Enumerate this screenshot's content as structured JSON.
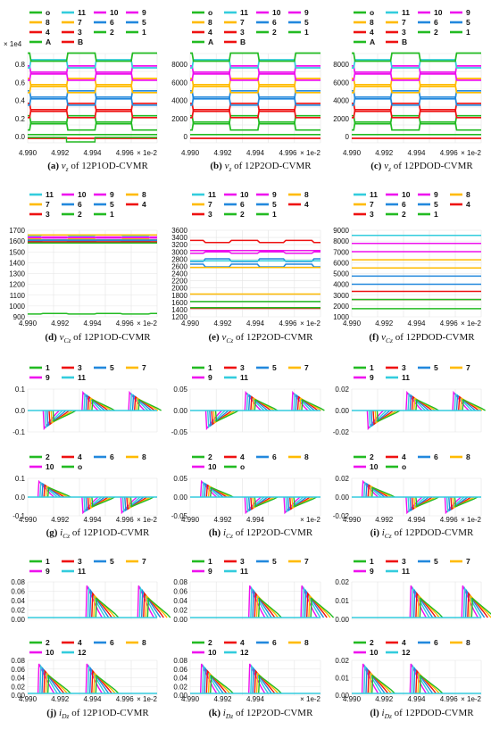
{
  "colors": {
    "1": "#22bb22",
    "2": "#22bb22",
    "3": "#ee1111",
    "4": "#ee1111",
    "5": "#2288dd",
    "6": "#2288dd",
    "7": "#ffbb00",
    "8": "#ffbb00",
    "9": "#ee11ee",
    "10": "#ee11ee",
    "11": "#33ccdd",
    "12": "#33ccdd",
    "o": "#22bb22",
    "A": "#22bb22",
    "B": "#ee1111"
  },
  "x_ticks": [
    "4.990",
    "4.992",
    "4.994",
    "4.996"
  ],
  "x_ticks_short": [
    "4.990",
    "4.992",
    "4.994"
  ],
  "x_unit": "× 1e-2",
  "chart_data": [
    {
      "id": "a",
      "type": "line",
      "caption_letter": "(a)",
      "caption_var": "v",
      "caption_sub": "z",
      "caption_rest": " of 12P1OD-CVMR",
      "legend": [
        [
          "o",
          "11",
          "10",
          "9"
        ],
        [
          "8",
          "7",
          "6",
          "5"
        ],
        [
          "4",
          "3",
          "2",
          "1"
        ],
        [
          "A",
          "B"
        ]
      ],
      "y_ticks": [
        "0.8",
        "0.6",
        "0.4",
        "0.2",
        "0.0"
      ],
      "y_multiplier": "× 1e4",
      "ylim": [
        -0.06,
        0.96
      ]
    },
    {
      "id": "b",
      "type": "line",
      "caption_letter": "(b)",
      "caption_var": "v",
      "caption_sub": "z",
      "caption_rest": " of 12P2OD-CVMR",
      "legend": [
        [
          "o",
          "11",
          "10",
          "9"
        ],
        [
          "8",
          "7",
          "6",
          "5"
        ],
        [
          "4",
          "3",
          "2",
          "1"
        ],
        [
          "A",
          "B"
        ]
      ],
      "y_ticks": [
        "8000",
        "6000",
        "4000",
        "2000",
        "0"
      ],
      "ylim": [
        -200,
        9600
      ]
    },
    {
      "id": "c",
      "type": "line",
      "caption_letter": "(c)",
      "caption_var": "v",
      "caption_sub": "z",
      "caption_rest": " of 12PDOD-CVMR",
      "legend": [
        [
          "o",
          "11",
          "10",
          "9"
        ],
        [
          "8",
          "7",
          "6",
          "5"
        ],
        [
          "4",
          "3",
          "2",
          "1"
        ],
        [
          "A",
          "B"
        ]
      ],
      "y_ticks": [
        "8000",
        "6000",
        "4000",
        "2000",
        "0"
      ],
      "ylim": [
        -200,
        9600
      ]
    },
    {
      "id": "d",
      "type": "line",
      "caption_letter": "(d)",
      "caption_var": "v",
      "caption_sub": "Cz",
      "caption_rest": " of 12P1OD-CVMR",
      "legend": [
        [
          "11",
          "10",
          "9",
          "8"
        ],
        [
          "7",
          "6",
          "5",
          "4"
        ],
        [
          "3",
          "2",
          "1"
        ]
      ],
      "y_ticks": [
        "1700",
        "1600",
        "1500",
        "1400",
        "1300",
        "1200",
        "1100",
        "1000",
        "900"
      ],
      "ylim": [
        840,
        1720
      ]
    },
    {
      "id": "e",
      "type": "line",
      "caption_letter": "(e)",
      "caption_var": "v",
      "caption_sub": "Cz",
      "caption_rest": " of 12P2OD-CVMR",
      "legend": [
        [
          "11",
          "10",
          "9",
          "8"
        ],
        [
          "7",
          "6",
          "5",
          "4"
        ],
        [
          "3",
          "2",
          "1"
        ]
      ],
      "y_ticks": [
        "3600",
        "3400",
        "3200",
        "3000",
        "2800",
        "2600",
        "2400",
        "2200",
        "2000",
        "1800",
        "1600",
        "1400",
        "1200"
      ],
      "ylim": [
        1150,
        3700
      ]
    },
    {
      "id": "f",
      "type": "line",
      "caption_letter": "(f)",
      "caption_var": "v",
      "caption_sub": "Cz",
      "caption_rest": " of 12PDOD-CVMR",
      "legend": [
        [
          "11",
          "10",
          "9",
          "8"
        ],
        [
          "7",
          "6",
          "5",
          "4"
        ],
        [
          "3",
          "2",
          "1"
        ]
      ],
      "y_ticks": [
        "9000",
        "8000",
        "7000",
        "6000",
        "5000",
        "4000",
        "3000",
        "2000",
        "1000"
      ],
      "ylim": [
        800,
        9300
      ]
    },
    {
      "id": "g",
      "type": "line",
      "caption_letter": "(g)",
      "caption_var": "i",
      "caption_sub": "Cz",
      "caption_rest": " of 12P1OD-CVMR",
      "legend_top": [
        [
          "1",
          "3",
          "5",
          "7"
        ],
        [
          "9",
          "11"
        ]
      ],
      "legend_bottom": [
        [
          "2",
          "4",
          "6",
          "8"
        ],
        [
          "10",
          "o"
        ]
      ],
      "y_ticks_top": [
        "0.1",
        "0.0",
        "-0.1"
      ],
      "y_ticks_bottom": [
        "0.1",
        "0.0",
        "-0.1"
      ],
      "ylim": [
        -0.1,
        0.1
      ]
    },
    {
      "id": "h",
      "type": "line",
      "caption_letter": "(h)",
      "caption_var": "i",
      "caption_sub": "Cz",
      "caption_rest": " of 12P2OD-CVMR",
      "legend_top": [
        [
          "1",
          "3",
          "5",
          "7"
        ],
        [
          "9",
          "11"
        ]
      ],
      "legend_bottom": [
        [
          "2",
          "4",
          "6",
          "8"
        ],
        [
          "10",
          "o"
        ]
      ],
      "y_ticks_top": [
        "0.05",
        "0.00",
        "-0.05"
      ],
      "y_ticks_bottom": [
        "0.05",
        "0.00",
        "-0.05"
      ],
      "ylim": [
        -0.08,
        0.08
      ]
    },
    {
      "id": "i",
      "type": "line",
      "caption_letter": "(i)",
      "caption_var": "i",
      "caption_sub": "Cz",
      "caption_rest": " of 12PDOD-CVMR",
      "legend_top": [
        [
          "1",
          "3",
          "5",
          "7"
        ],
        [
          "9",
          "11"
        ]
      ],
      "legend_bottom": [
        [
          "2",
          "4",
          "6",
          "8"
        ],
        [
          "10",
          "o"
        ]
      ],
      "y_ticks_top": [
        "0.02",
        "0.00",
        "-0.02"
      ],
      "y_ticks_bottom": [
        "0.02",
        "0.00",
        "-0.02"
      ],
      "ylim": [
        -0.03,
        0.03
      ]
    },
    {
      "id": "j",
      "type": "line",
      "caption_letter": "(j)",
      "caption_var": "i",
      "caption_sub": "Dz",
      "caption_rest": " of 12P1OD-CVMR",
      "legend_top": [
        [
          "1",
          "3",
          "5",
          "7"
        ],
        [
          "9",
          "11"
        ]
      ],
      "legend_bottom": [
        [
          "2",
          "4",
          "6",
          "8"
        ],
        [
          "10",
          "12"
        ]
      ],
      "y_ticks_top": [
        "0.08",
        "0.06",
        "0.04",
        "0.02",
        "0.00"
      ],
      "y_ticks_bottom": [
        "0.08",
        "0.06",
        "0.04",
        "0.02",
        "0.00"
      ],
      "ylim": [
        0,
        0.085
      ]
    },
    {
      "id": "k",
      "type": "line",
      "caption_letter": "(k)",
      "caption_var": "i",
      "caption_sub": "Dz",
      "caption_rest": " of 12P2OD-CVMR",
      "legend_top": [
        [
          "1",
          "3",
          "5",
          "7"
        ],
        [
          "9",
          "11"
        ]
      ],
      "legend_bottom": [
        [
          "2",
          "4",
          "6",
          "8"
        ],
        [
          "10",
          "12"
        ]
      ],
      "y_ticks_top": [
        "0.08",
        "0.06",
        "0.04",
        "0.02",
        "0.00"
      ],
      "y_ticks_bottom": [
        "0.08",
        "0.06",
        "0.04",
        "0.02",
        "0.00"
      ],
      "ylim": [
        0,
        0.085
      ]
    },
    {
      "id": "l",
      "type": "line",
      "caption_letter": "(l)",
      "caption_var": "i",
      "caption_sub": "Dz",
      "caption_rest": " of 12PDOD-CVMR",
      "legend_top": [
        [
          "1",
          "3",
          "5",
          "7"
        ],
        [
          "9",
          "11"
        ]
      ],
      "legend_bottom": [
        [
          "2",
          "4",
          "6",
          "8"
        ],
        [
          "10",
          "12"
        ]
      ],
      "y_ticks_top": [
        "0.02",
        "0.01",
        "0.00"
      ],
      "y_ticks_bottom": [
        "0.02",
        "0.01",
        "0.00"
      ],
      "ylim": [
        0,
        0.03
      ]
    }
  ]
}
